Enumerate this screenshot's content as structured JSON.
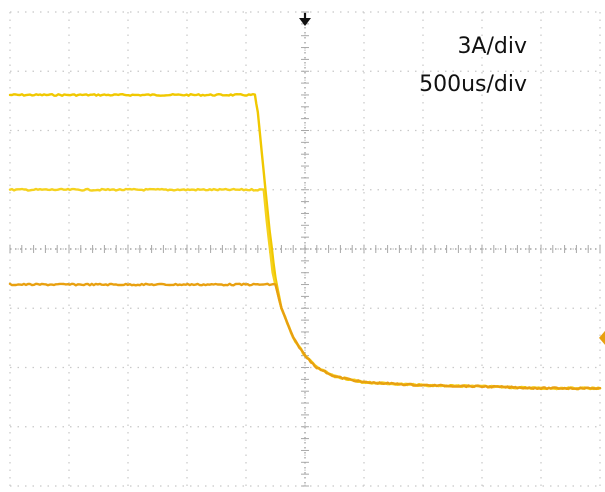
{
  "chart_data": {
    "type": "line",
    "title": "",
    "xlabel": "",
    "ylabel": "",
    "scales": {
      "vertical": "3A/div",
      "horizontal": "500us/div"
    },
    "grid": true,
    "divisions": {
      "x": 10,
      "y": 8
    },
    "xlim": [
      0,
      10
    ],
    "ylim": [
      0,
      8
    ],
    "trigger_marker": {
      "x": 5
    },
    "channel_marker": {
      "y": 2.5
    },
    "series": [
      {
        "color": "#f0c800",
        "x": [
          0,
          4.15,
          4.2,
          4.3,
          4.4,
          4.5,
          4.6,
          4.8,
          5.0,
          5.2,
          5.5,
          6.0,
          7.0,
          8.0,
          9.0,
          10.0
        ],
        "y": [
          6.6,
          6.6,
          6.3,
          5.3,
          4.3,
          3.5,
          3.0,
          2.5,
          2.2,
          2.0,
          1.85,
          1.75,
          1.7,
          1.68,
          1.65,
          1.65
        ]
      },
      {
        "color": "#f5d21e",
        "x": [
          0,
          4.3,
          4.35,
          4.45,
          4.6,
          4.8,
          5.0,
          5.2,
          5.5,
          6.0,
          7.0,
          8.0,
          9.0,
          10.0
        ],
        "y": [
          5.0,
          5.0,
          4.5,
          3.6,
          3.0,
          2.5,
          2.2,
          2.0,
          1.85,
          1.75,
          1.7,
          1.68,
          1.65,
          1.65
        ]
      },
      {
        "color": "#e8a010",
        "x": [
          0,
          4.5,
          4.6,
          4.8,
          5.0,
          5.2,
          5.5,
          6.0,
          7.0,
          8.0,
          9.0,
          10.0
        ],
        "y": [
          3.4,
          3.4,
          3.0,
          2.5,
          2.2,
          2.0,
          1.85,
          1.75,
          1.7,
          1.68,
          1.65,
          1.65
        ]
      }
    ]
  }
}
